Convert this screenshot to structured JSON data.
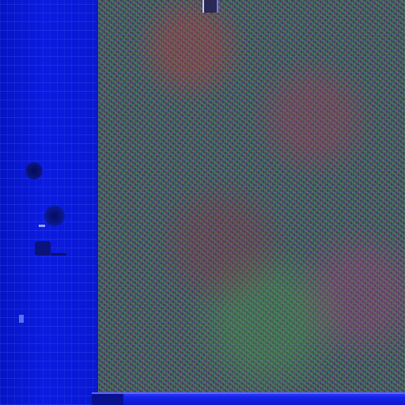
{
  "theme": {
    "sidebar_color": "#0a17d6",
    "taskbar_color": "#1322e6",
    "content_base_color": "#3b3f5a"
  },
  "sidebar": {
    "icons": [
      {
        "icon": "dark-circle-icon"
      },
      {
        "icon": "dark-circle-icon"
      },
      {
        "icon": "square-icon"
      },
      {
        "icon": "small-marker-icon"
      }
    ]
  },
  "content": {
    "description_visible_text": ""
  },
  "taskbar": {
    "items": []
  }
}
